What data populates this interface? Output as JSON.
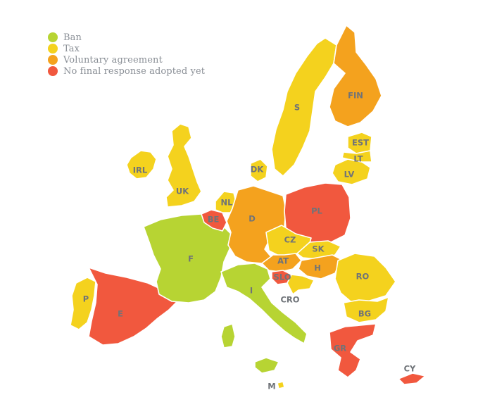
{
  "colors": {
    "ban": "#b7d433",
    "tax": "#f4d21e",
    "voluntary": "#f4a21e",
    "none": "#f1583e"
  },
  "legend": [
    {
      "key": "ban",
      "label": "Ban"
    },
    {
      "key": "tax",
      "label": "Tax"
    },
    {
      "key": "voluntary",
      "label": "Voluntary agreement"
    },
    {
      "key": "none",
      "label": "No final response adopted yet"
    }
  ],
  "countries": [
    {
      "id": "ireland",
      "label": "IRL",
      "policy": "tax"
    },
    {
      "id": "uk",
      "label": "UK",
      "policy": "tax"
    },
    {
      "id": "portugal",
      "label": "P",
      "policy": "tax"
    },
    {
      "id": "spain",
      "label": "E",
      "policy": "none"
    },
    {
      "id": "france",
      "label": "F",
      "policy": "ban"
    },
    {
      "id": "belgium",
      "label": "BE",
      "policy": "none"
    },
    {
      "id": "netherlands",
      "label": "NL",
      "policy": "tax"
    },
    {
      "id": "germany",
      "label": "D",
      "policy": "voluntary"
    },
    {
      "id": "denmark",
      "label": "DK",
      "policy": "tax"
    },
    {
      "id": "sweden",
      "label": "S",
      "policy": "tax"
    },
    {
      "id": "finland",
      "label": "FIN",
      "policy": "voluntary"
    },
    {
      "id": "estonia",
      "label": "EST",
      "policy": "tax"
    },
    {
      "id": "latvia",
      "label": "LV",
      "policy": "tax"
    },
    {
      "id": "lithuania",
      "label": "LT",
      "policy": "tax"
    },
    {
      "id": "poland",
      "label": "PL",
      "policy": "none"
    },
    {
      "id": "czechia",
      "label": "CZ",
      "policy": "tax"
    },
    {
      "id": "slovakia",
      "label": "SK",
      "policy": "tax"
    },
    {
      "id": "austria",
      "label": "AT",
      "policy": "voluntary"
    },
    {
      "id": "hungary",
      "label": "H",
      "policy": "voluntary"
    },
    {
      "id": "slovenia",
      "label": "SLO",
      "policy": "none"
    },
    {
      "id": "croatia",
      "label": "CRO",
      "policy": "tax"
    },
    {
      "id": "italy",
      "label": "I",
      "policy": "ban"
    },
    {
      "id": "romania",
      "label": "RO",
      "policy": "tax"
    },
    {
      "id": "bulgaria",
      "label": "BG",
      "policy": "tax"
    },
    {
      "id": "greece",
      "label": "GR",
      "policy": "none"
    },
    {
      "id": "cyprus",
      "label": "CY",
      "policy": "none"
    },
    {
      "id": "malta",
      "label": "M",
      "policy": "tax"
    }
  ]
}
